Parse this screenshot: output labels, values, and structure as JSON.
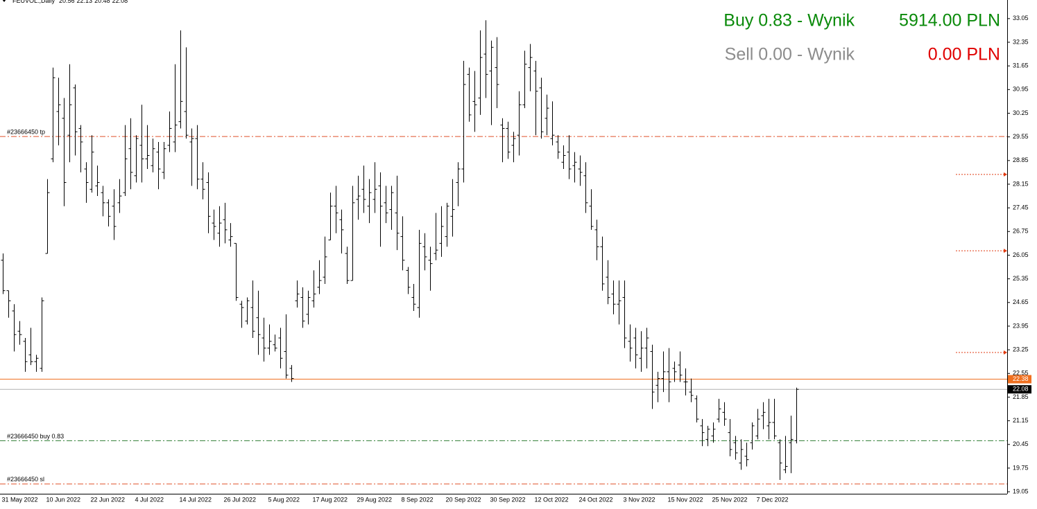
{
  "chart_data": {
    "type": "ohlc",
    "symbol": "FEUVOL.,Daily",
    "color": "#000000",
    "categories": [
      "31 May 2022",
      null,
      null,
      null,
      null,
      null,
      null,
      null,
      "10 Jun 2022",
      null,
      null,
      null,
      null,
      null,
      null,
      null,
      "22 Jun 2022",
      null,
      null,
      null,
      null,
      null,
      null,
      null,
      "4 Jul 2022",
      null,
      null,
      null,
      null,
      null,
      null,
      null,
      "14 Jul 2022",
      null,
      null,
      null,
      null,
      null,
      null,
      null,
      "26 Jul 2022",
      null,
      null,
      null,
      null,
      null,
      null,
      null,
      "5 Aug 2022",
      null,
      null,
      null,
      null,
      null,
      null,
      null,
      "17 Aug 2022",
      null,
      null,
      null,
      null,
      null,
      null,
      null,
      "29 Aug 2022",
      null,
      null,
      null,
      null,
      null,
      null,
      null,
      "8 Sep 2022",
      null,
      null,
      null,
      null,
      null,
      null,
      null,
      "20 Sep 2022",
      null,
      null,
      null,
      null,
      null,
      null,
      null,
      "30 Sep 2022",
      null,
      null,
      null,
      null,
      null,
      null,
      null,
      "12 Oct 2022",
      null,
      null,
      null,
      null,
      null,
      null,
      null,
      "24 Oct 2022",
      null,
      null,
      null,
      null,
      null,
      null,
      null,
      "3 Nov 2022",
      null,
      null,
      null,
      null,
      null,
      null,
      null,
      "15 Nov 2022",
      null,
      null,
      null,
      null,
      null,
      null,
      null,
      "25 Nov 2022",
      null,
      null,
      null,
      null,
      null,
      null,
      null,
      "7 Dec 2022",
      null,
      null,
      null,
      null,
      null,
      null,
      null
    ],
    "values": [
      [
        25.9,
        26.1,
        24.9,
        25.0
      ],
      [
        25.0,
        25.0,
        24.2,
        24.7
      ],
      [
        24.4,
        24.6,
        23.2,
        23.7
      ],
      [
        23.8,
        24.1,
        23.4,
        23.7
      ],
      [
        23.5,
        23.6,
        22.6,
        22.9
      ],
      [
        23.1,
        23.9,
        22.8,
        22.9
      ],
      [
        22.9,
        23.1,
        22.6,
        23.0
      ],
      [
        22.7,
        24.8,
        22.6,
        24.7
      ],
      [
        26.1,
        28.3,
        26.1,
        27.9
      ],
      [
        28.9,
        31.6,
        28.8,
        31.3
      ],
      [
        30.3,
        31.3,
        29.3,
        30.5
      ],
      [
        30.1,
        30.7,
        27.5,
        28.2
      ],
      [
        29.6,
        31.7,
        28.8,
        30.5
      ],
      [
        31.0,
        31.1,
        29.0,
        29.7
      ],
      [
        29.8,
        29.9,
        28.5,
        29.4
      ],
      [
        28.6,
        28.8,
        27.6,
        28.2
      ],
      [
        28.0,
        29.6,
        27.9,
        29.1
      ],
      [
        28.1,
        28.7,
        27.8,
        28.2
      ],
      [
        27.9,
        28.1,
        27.2,
        27.6
      ],
      [
        27.6,
        27.7,
        26.9,
        27.2
      ],
      [
        27.5,
        28.0,
        26.5,
        26.9
      ],
      [
        27.6,
        28.3,
        27.3,
        27.8
      ],
      [
        27.9,
        29.9,
        27.8,
        28.9
      ],
      [
        29.2,
        30.1,
        28.0,
        28.5
      ],
      [
        28.4,
        29.6,
        28.2,
        29.5
      ],
      [
        29.3,
        30.5,
        28.2,
        28.9
      ],
      [
        28.9,
        29.9,
        28.6,
        29.0
      ],
      [
        28.7,
        29.5,
        28.5,
        29.2
      ],
      [
        29.1,
        29.4,
        28.0,
        28.6
      ],
      [
        28.5,
        29.4,
        28.3,
        29.2
      ],
      [
        29.3,
        30.3,
        29.1,
        29.8
      ],
      [
        29.4,
        31.7,
        29.1,
        29.9
      ],
      [
        30.0,
        32.7,
        29.8,
        30.6
      ],
      [
        30.3,
        32.2,
        29.5,
        29.6
      ],
      [
        29.4,
        29.8,
        28.1,
        29.5
      ],
      [
        29.5,
        29.9,
        28.0,
        28.3
      ],
      [
        28.3,
        28.8,
        27.7,
        28.0
      ],
      [
        28.2,
        28.5,
        26.7,
        27.2
      ],
      [
        27.0,
        27.4,
        26.5,
        26.9
      ],
      [
        26.7,
        27.5,
        26.3,
        27.0
      ],
      [
        27.1,
        27.6,
        26.4,
        26.8
      ],
      [
        26.5,
        27.0,
        26.3,
        26.6
      ],
      [
        26.4,
        26.4,
        24.7,
        24.8
      ],
      [
        24.6,
        24.7,
        23.9,
        24.5
      ],
      [
        24.1,
        24.8,
        24.0,
        24.7
      ],
      [
        24.5,
        25.3,
        23.6,
        23.8
      ],
      [
        24.2,
        25.0,
        23.1,
        23.7
      ],
      [
        23.6,
        24.2,
        22.9,
        23.3
      ],
      [
        23.3,
        24.0,
        23.1,
        23.5
      ],
      [
        23.4,
        23.7,
        23.2,
        23.3
      ],
      [
        23.6,
        23.9,
        22.7,
        23.0
      ],
      [
        23.2,
        24.3,
        22.4,
        22.5
      ],
      [
        22.7,
        22.8,
        22.3,
        22.4
      ],
      [
        24.7,
        25.3,
        24.5,
        24.9
      ],
      [
        24.8,
        25.1,
        23.9,
        24.1
      ],
      [
        24.3,
        25.0,
        24.0,
        24.8
      ],
      [
        24.7,
        25.6,
        24.5,
        24.9
      ],
      [
        25.1,
        25.9,
        24.9,
        25.3
      ],
      [
        25.4,
        26.6,
        25.2,
        26.0
      ],
      [
        26.5,
        27.9,
        26.5,
        27.5
      ],
      [
        27.5,
        28.1,
        26.7,
        27.3
      ],
      [
        27.1,
        27.4,
        26.1,
        26.8
      ],
      [
        26.1,
        26.3,
        25.2,
        25.3
      ],
      [
        25.3,
        28.1,
        25.3,
        27.6
      ],
      [
        27.7,
        28.4,
        27.1,
        27.8
      ],
      [
        28.0,
        28.7,
        27.3,
        27.7
      ],
      [
        27.5,
        28.3,
        27.0,
        27.9
      ],
      [
        27.7,
        28.8,
        27.3,
        28.0
      ],
      [
        28.1,
        28.5,
        26.3,
        27.5
      ],
      [
        27.6,
        28.1,
        27.0,
        27.3
      ],
      [
        27.4,
        28.1,
        26.8,
        27.9
      ],
      [
        27.3,
        28.4,
        26.2,
        26.7
      ],
      [
        26.6,
        27.2,
        25.6,
        25.9
      ],
      [
        25.6,
        25.7,
        24.9,
        25.1
      ],
      [
        24.8,
        25.2,
        24.4,
        24.6
      ],
      [
        24.5,
        26.8,
        24.2,
        26.4
      ],
      [
        26.3,
        26.7,
        25.6,
        26.0
      ],
      [
        25.9,
        26.3,
        25.0,
        25.8
      ],
      [
        26.1,
        27.3,
        25.9,
        26.2
      ],
      [
        26.4,
        27.5,
        26.0,
        26.9
      ],
      [
        26.6,
        27.6,
        26.3,
        27.5
      ],
      [
        27.2,
        28.3,
        26.6,
        27.4
      ],
      [
        28.2,
        28.8,
        27.5,
        28.6
      ],
      [
        28.6,
        31.8,
        28.2,
        31.1
      ],
      [
        31.4,
        31.6,
        30.0,
        30.2
      ],
      [
        30.6,
        31.5,
        29.7,
        30.5
      ],
      [
        30.7,
        32.7,
        30.2,
        31.9
      ],
      [
        32.0,
        33.0,
        30.7,
        31.4
      ],
      [
        31.5,
        32.4,
        29.9,
        32.2
      ],
      [
        31.6,
        32.5,
        30.4,
        31.1
      ],
      [
        29.9,
        30.1,
        28.8,
        29.8
      ],
      [
        29.8,
        30.0,
        28.9,
        29.1
      ],
      [
        29.3,
        29.7,
        28.8,
        29.5
      ],
      [
        29.6,
        30.9,
        29.0,
        30.5
      ],
      [
        30.5,
        32.1,
        30.4,
        31.7
      ],
      [
        31.6,
        32.3,
        30.9,
        31.9
      ],
      [
        31.5,
        31.8,
        29.6,
        30.9
      ],
      [
        31.0,
        31.3,
        29.5,
        29.7
      ],
      [
        30.1,
        30.8,
        29.6,
        30.4
      ],
      [
        29.5,
        30.6,
        29.3,
        29.6
      ],
      [
        29.4,
        29.6,
        28.9,
        29.1
      ],
      [
        28.8,
        29.3,
        28.6,
        29.0
      ],
      [
        29.1,
        29.6,
        28.3,
        28.6
      ],
      [
        28.7,
        29.1,
        28.2,
        28.8
      ],
      [
        28.6,
        29.0,
        28.1,
        28.5
      ],
      [
        28.4,
        28.8,
        27.3,
        27.6
      ],
      [
        27.5,
        28.0,
        26.8,
        26.9
      ],
      [
        26.8,
        27.1,
        25.9,
        26.3
      ],
      [
        26.3,
        26.6,
        25.0,
        25.2
      ],
      [
        25.4,
        25.9,
        24.6,
        24.8
      ],
      [
        24.9,
        25.3,
        24.3,
        24.6
      ],
      [
        24.6,
        25.3,
        24.0,
        24.7
      ],
      [
        24.8,
        25.3,
        23.3,
        23.6
      ],
      [
        23.5,
        24.0,
        22.9,
        23.3
      ],
      [
        23.6,
        23.9,
        22.7,
        23.1
      ],
      [
        23.0,
        23.8,
        22.6,
        23.3
      ],
      [
        23.3,
        23.9,
        22.7,
        23.6
      ],
      [
        23.2,
        23.4,
        21.5,
        22.0
      ],
      [
        22.2,
        22.6,
        21.7,
        22.4
      ],
      [
        22.4,
        23.2,
        22.0,
        22.6
      ],
      [
        22.6,
        23.3,
        21.7,
        22.3
      ],
      [
        22.7,
        22.9,
        22.3,
        22.6
      ],
      [
        22.8,
        23.2,
        22.3,
        22.5
      ],
      [
        22.3,
        22.7,
        21.9,
        22.3
      ],
      [
        22.0,
        22.4,
        21.7,
        21.9
      ],
      [
        21.8,
        21.9,
        21.1,
        21.2
      ],
      [
        21.0,
        21.2,
        20.4,
        20.8
      ],
      [
        20.6,
        21.0,
        20.4,
        20.9
      ],
      [
        20.7,
        21.1,
        20.5,
        20.9
      ],
      [
        21.2,
        21.8,
        21.1,
        21.5
      ],
      [
        21.4,
        21.7,
        21.0,
        21.2
      ],
      [
        20.8,
        21.2,
        20.1,
        20.3
      ],
      [
        20.5,
        20.7,
        20.0,
        20.2
      ],
      [
        19.9,
        20.6,
        19.7,
        20.3
      ],
      [
        20.1,
        20.5,
        19.8,
        20.0
      ],
      [
        20.5,
        21.1,
        20.3,
        21.0
      ],
      [
        20.7,
        21.5,
        20.6,
        21.2
      ],
      [
        21.3,
        21.7,
        20.9,
        21.4
      ],
      [
        21.0,
        21.8,
        20.6,
        21.1
      ],
      [
        21.1,
        21.8,
        20.6,
        20.7
      ],
      [
        20.5,
        20.6,
        19.4,
        19.9
      ],
      [
        19.7,
        20.7,
        19.6,
        19.8
      ],
      [
        20.5,
        21.3,
        19.6,
        20.6
      ],
      [
        20.56,
        22.13,
        20.48,
        22.08
      ]
    ],
    "ylim": [
      18.99,
      33.6
    ],
    "yticks": [
      33.05,
      32.35,
      31.65,
      30.95,
      30.25,
      29.55,
      28.85,
      28.15,
      27.45,
      26.75,
      26.05,
      25.35,
      24.65,
      23.95,
      23.25,
      22.55,
      21.85,
      21.15,
      20.45,
      19.75,
      19.05
    ],
    "levels": [
      {
        "label": "#23666450 tp",
        "value": 29.56,
        "color": "#e0502a"
      },
      {
        "label": "#23666450 buy 0.83",
        "value": 20.56,
        "color": "#2e7d32"
      },
      {
        "label": "#23666450 sl",
        "value": 19.28,
        "color": "#e0502a"
      }
    ],
    "price_line": {
      "value": 22.38,
      "color": "#f07020"
    },
    "close_line_color": "#b0b0b0",
    "pending_markers": {
      "values": [
        28.44,
        26.18,
        23.17
      ],
      "color": "#e03a10"
    },
    "panel": [
      {
        "label": "Buy 0.83 - Wynik",
        "result": "5914.00 PLN",
        "label_color": "#0a8a0a",
        "result_color": "#0a8a0a"
      },
      {
        "label": "Sell 0.00 - Wynik",
        "result": "0.00 PLN",
        "label_color": "#8c8c8c",
        "result_color": "#e00000"
      }
    ]
  }
}
